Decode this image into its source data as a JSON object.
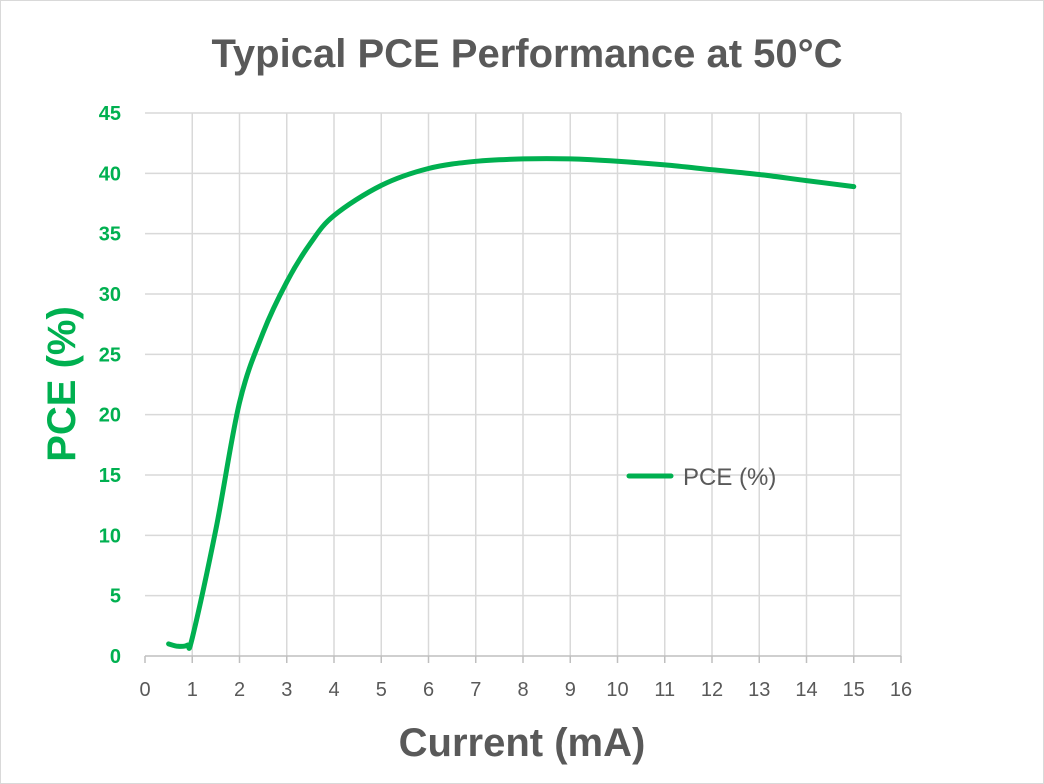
{
  "chart_data": {
    "type": "line",
    "title": "Typical PCE Performance at 50°C",
    "xlabel": "Current (mA)",
    "ylabel": "PCE (%)",
    "xlim": [
      0,
      16
    ],
    "ylim": [
      0,
      45
    ],
    "x_ticks": [
      "0",
      "1",
      "2",
      "3",
      "4",
      "5",
      "6",
      "7",
      "8",
      "9",
      "10",
      "11",
      "12",
      "13",
      "14",
      "15",
      "16"
    ],
    "y_ticks": [
      "0",
      "5",
      "10",
      "15",
      "20",
      "25",
      "30",
      "35",
      "40",
      "45"
    ],
    "grid": true,
    "legend_position": "right",
    "series": [
      {
        "name": "PCE (%)",
        "color": "#00b050",
        "x": [
          0.5,
          0.7,
          0.9,
          1.0,
          1.5,
          2.0,
          2.5,
          3.0,
          3.5,
          4.0,
          5.0,
          6.0,
          7.0,
          8.0,
          9.0,
          10.0,
          11.0,
          12.0,
          13.0,
          14.0,
          15.0
        ],
        "y": [
          1.0,
          0.8,
          0.9,
          1.5,
          10.5,
          21.0,
          26.8,
          31.0,
          34.2,
          36.5,
          39.0,
          40.4,
          41.0,
          41.2,
          41.2,
          41.0,
          40.7,
          40.3,
          39.9,
          39.4,
          38.9
        ]
      }
    ]
  }
}
